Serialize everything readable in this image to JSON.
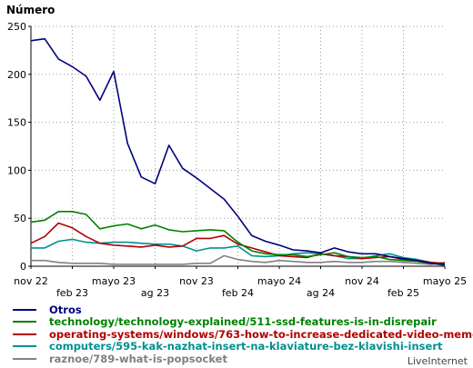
{
  "chart_data": {
    "type": "line",
    "title": "Número",
    "xlabel": "",
    "ylabel": "",
    "ylim": [
      0,
      250
    ],
    "yticks": [
      0,
      50,
      100,
      150,
      200,
      250
    ],
    "grid": true,
    "legend_position": "bottom",
    "x_ticks": [
      {
        "label": "nov 22",
        "row": 1
      },
      {
        "label": "feb 23",
        "row": 2
      },
      {
        "label": "mayo 23",
        "row": 1
      },
      {
        "label": "ag 23",
        "row": 2
      },
      {
        "label": "nov 23",
        "row": 1
      },
      {
        "label": "feb 24",
        "row": 2
      },
      {
        "label": "mayo 24",
        "row": 1
      },
      {
        "label": "ag 24",
        "row": 2
      },
      {
        "label": "nov 24",
        "row": 1
      },
      {
        "label": "feb 25",
        "row": 2
      },
      {
        "label": "mayo 25",
        "row": 1
      }
    ],
    "series": [
      {
        "name": "Otros",
        "color": "#000080",
        "values": [
          235,
          237,
          216,
          208,
          198,
          173,
          203,
          128,
          93,
          86,
          126,
          102,
          92,
          81,
          70,
          52,
          32,
          26,
          22,
          17,
          16,
          14,
          19,
          15,
          13,
          13,
          10,
          8,
          6,
          3,
          2
        ]
      },
      {
        "name": "technology/technology-explained/511-ssd-features-is-in-disrepair",
        "color": "#008000",
        "values": [
          46,
          48,
          57,
          57,
          54,
          39,
          42,
          44,
          39,
          43,
          38,
          36,
          37,
          38,
          37,
          25,
          16,
          13,
          12,
          12,
          10,
          12,
          14,
          10,
          9,
          10,
          7,
          6,
          5,
          3,
          1
        ]
      },
      {
        "name": "operating-systems/windows/763-how-to-increase-dedicated-video-memo",
        "color": "#b00000",
        "values": [
          24,
          31,
          45,
          40,
          31,
          24,
          22,
          21,
          20,
          22,
          20,
          21,
          29,
          29,
          32,
          23,
          19,
          15,
          11,
          10,
          9,
          13,
          11,
          10,
          8,
          9,
          10,
          7,
          6,
          4,
          3
        ]
      },
      {
        "name": "computers/595-kak-nazhat-insert-na-klaviature-bez-klavishi-insert",
        "color": "#009090",
        "values": [
          19,
          19,
          26,
          28,
          25,
          24,
          25,
          25,
          24,
          23,
          23,
          21,
          16,
          19,
          19,
          21,
          11,
          10,
          11,
          13,
          14,
          13,
          11,
          8,
          8,
          11,
          13,
          9,
          7,
          4,
          2
        ]
      },
      {
        "name": "raznoe/789-what-is-popsocket",
        "color": "#808080",
        "values": [
          6,
          6,
          4,
          3,
          3,
          3,
          2,
          2,
          2,
          2,
          2,
          2,
          3,
          3,
          11,
          7,
          5,
          4,
          6,
          5,
          4,
          4,
          5,
          4,
          4,
          5,
          5,
          4,
          3,
          2,
          4
        ]
      }
    ]
  },
  "footer": {
    "brand": "LiveInternet"
  }
}
